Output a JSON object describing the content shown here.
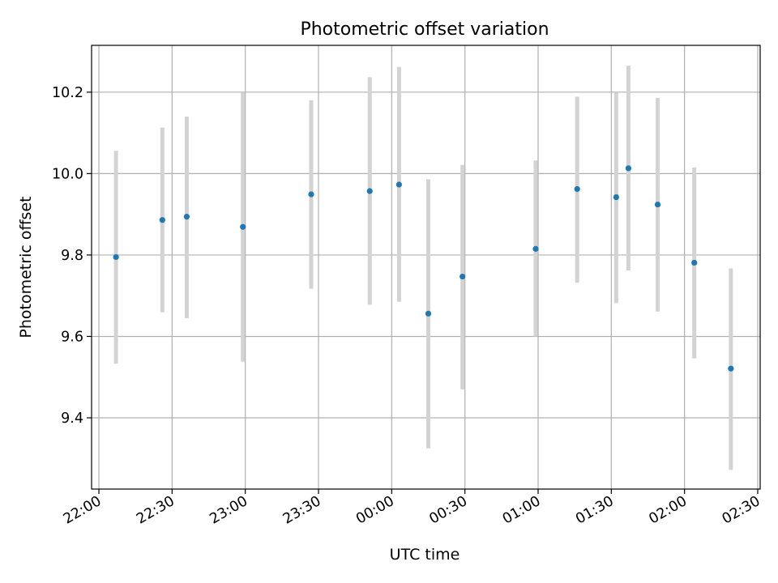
{
  "chart_data": {
    "type": "scatter",
    "title": "Photometric offset variation",
    "xlabel": "UTC time",
    "ylabel": "Photometric offset",
    "x_ticks": [
      "22:00",
      "22:30",
      "23:00",
      "23:30",
      "00:00",
      "00:30",
      "01:00",
      "01:30",
      "02:00",
      "02:30"
    ],
    "x_tick_values": [
      "22:00",
      "22:30",
      "23:00",
      "23:30",
      "00:00",
      "00:30",
      "01:00",
      "01:30",
      "02:00",
      "02:30"
    ],
    "y_ticks": [
      "9.4",
      "9.6",
      "9.8",
      "10.0",
      "10.2"
    ],
    "y_tick_values": [
      9.4,
      9.6,
      9.8,
      10.0,
      10.2
    ],
    "xlim": [
      "21:57",
      "02:31"
    ],
    "ylim": [
      9.225,
      10.315
    ],
    "grid": true,
    "series": [
      {
        "x": [
          "22:07",
          "22:26",
          "22:36",
          "22:59",
          "23:27",
          "23:51",
          "00:03",
          "00:15",
          "00:29",
          "00:59",
          "01:16",
          "01:32",
          "01:37",
          "01:49",
          "02:04",
          "02:19"
        ],
        "y": [
          9.795,
          9.886,
          9.894,
          9.869,
          9.949,
          9.957,
          9.973,
          9.656,
          9.747,
          9.815,
          9.962,
          9.942,
          10.013,
          9.924,
          9.781,
          9.521
        ],
        "err_low": [
          9.533,
          9.659,
          9.645,
          9.538,
          9.717,
          9.678,
          9.685,
          9.325,
          9.47,
          9.6,
          9.732,
          9.682,
          9.762,
          9.661,
          9.546,
          9.272
        ],
        "err_high": [
          10.056,
          10.113,
          10.14,
          10.199,
          10.18,
          10.237,
          10.262,
          9.986,
          10.021,
          10.032,
          10.189,
          10.199,
          10.265,
          10.186,
          10.015,
          9.767
        ]
      }
    ],
    "colors": {
      "point": "#1f77b4",
      "errorbar": "#d3d3d3",
      "grid": "#b0b0b0",
      "axes": "#000000"
    }
  }
}
